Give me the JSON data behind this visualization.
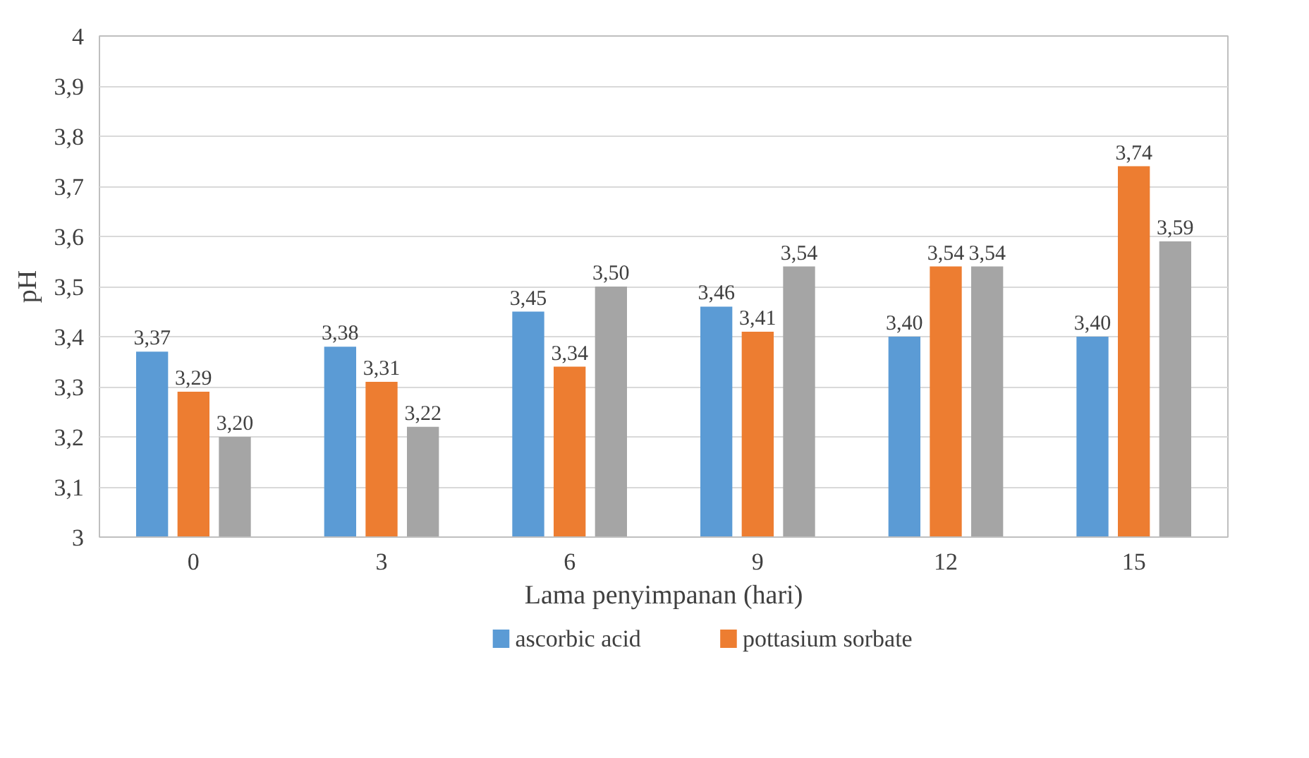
{
  "chart_data": {
    "type": "bar",
    "xlabel": "Lama penyimpanan (hari)",
    "ylabel": "pH",
    "categories": [
      "0",
      "3",
      "6",
      "9",
      "12",
      "15"
    ],
    "series": [
      {
        "name": "ascorbic acid",
        "color": "#5b9bd5",
        "values": [
          3.37,
          3.38,
          3.45,
          3.46,
          3.4,
          3.4
        ],
        "value_labels": [
          "3,37",
          "3,38",
          "3,45",
          "3,46",
          "3,40",
          "3,40"
        ]
      },
      {
        "name": "pottasium sorbate",
        "color": "#ed7d31",
        "values": [
          3.29,
          3.31,
          3.34,
          3.41,
          3.54,
          3.74
        ],
        "value_labels": [
          "3,29",
          "3,31",
          "3,34",
          "3,41",
          "3,54",
          "3,74"
        ]
      },
      {
        "color": "#a5a5a5",
        "values": [
          3.2,
          3.22,
          3.5,
          3.54,
          3.54,
          3.59
        ],
        "value_labels": [
          "3,20",
          "3,22",
          "3,50",
          "3,54",
          "3,54",
          "3,59"
        ]
      }
    ],
    "ylim": [
      3,
      4
    ],
    "yticks": [
      3,
      {
        "value": 3.1,
        "label": "3,1"
      },
      {
        "value": 3.2,
        "label": "3,2"
      },
      {
        "value": 3.3,
        "label": "3,3"
      },
      {
        "value": 3.4,
        "label": "3,4"
      },
      {
        "value": 3.5,
        "label": "3,5"
      },
      {
        "value": 3.6,
        "label": "3,6"
      },
      {
        "value": 3.7,
        "label": "3,7"
      },
      {
        "value": 3.8,
        "label": "3,8"
      },
      {
        "value": 3.9,
        "label": "3,9"
      },
      4
    ],
    "grid": "y",
    "legend": "bottom"
  }
}
